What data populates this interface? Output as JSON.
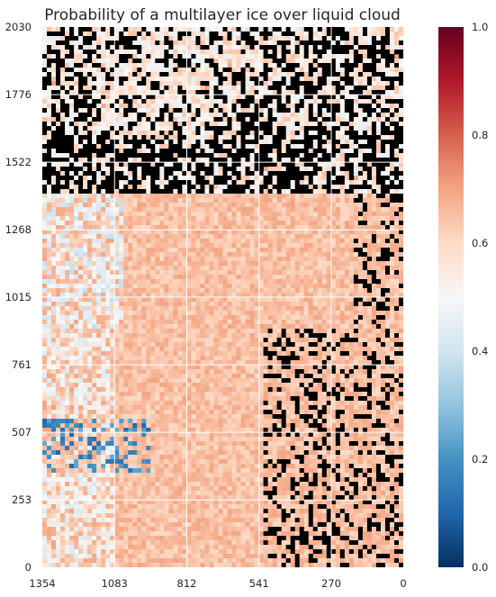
{
  "chart_data": {
    "type": "heatmap",
    "title": "Probability of a multilayer ice over liquid cloud",
    "xlabel": "",
    "ylabel": "",
    "x_ticks": [
      "1354",
      "1083",
      "812",
      "541",
      "270",
      "0"
    ],
    "y_ticks": [
      "0",
      "253",
      "507",
      "761",
      "1015",
      "1268",
      "1522",
      "1776",
      "2030"
    ],
    "xlim": [
      1354,
      0
    ],
    "ylim": [
      0,
      2030
    ],
    "grid": true,
    "colormap": "RdBu_r",
    "colorbar": {
      "range": [
        0.0,
        1.0
      ],
      "ticks": [
        "0.0",
        "0.2",
        "0.4",
        "0.6",
        "0.8",
        "1.0"
      ],
      "colors": [
        "#053061",
        "#2166ac",
        "#4393c3",
        "#92c5de",
        "#d1e5f0",
        "#f7f7f7",
        "#fddbc7",
        "#f4a582",
        "#d6604d",
        "#b2182b",
        "#67001f"
      ]
    },
    "no_data_color": "#000000",
    "dominant_value": 0.65,
    "regions": [
      {
        "name": "upper band, mostly no retrieval",
        "y_range": [
          1400,
          2030
        ],
        "value_range": [
          0.3,
          0.6
        ]
      },
      {
        "name": "middle band",
        "y_range": [
          900,
          1400
        ],
        "value_range": [
          0.4,
          0.7
        ]
      },
      {
        "name": "lower band",
        "y_range": [
          0,
          900
        ],
        "value_range": [
          0.1,
          0.7
        ]
      }
    ]
  }
}
